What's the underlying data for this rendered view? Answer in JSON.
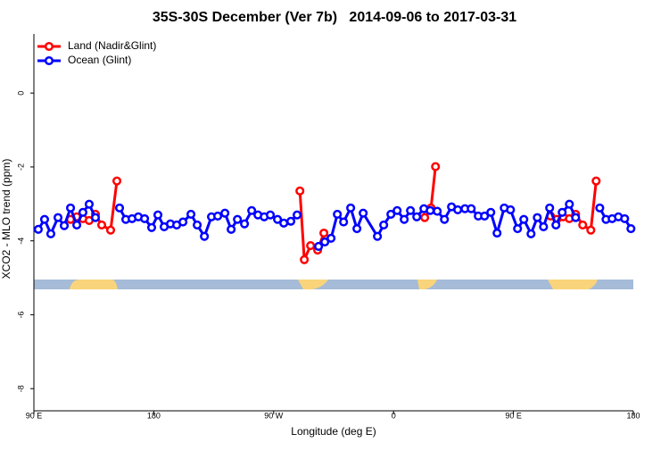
{
  "chart_data": {
    "type": "line",
    "title": "35S-30S December (Ver 7b)   2014-09-06 to 2017-03-31",
    "x_label": "Longitude (deg E)",
    "y_label": "XCO2 - MLO trend (ppm)",
    "xlim": [
      90,
      540
    ],
    "ylim": [
      -8.6,
      1.6
    ],
    "xticks": [
      {
        "value": 90,
        "label": "90 E"
      },
      180,
      {
        "value": 270,
        "label": "90 W"
      },
      {
        "value": 360,
        "label": "0"
      },
      {
        "value": 450,
        "label": "90 E"
      },
      {
        "value": 540,
        "label": "180"
      }
    ],
    "yticks": [
      0,
      -2,
      -4,
      -6,
      -8
    ],
    "legend": "top-left",
    "series": [
      {
        "name": "Land (Nadir&Glint)",
        "color": "#ff0000",
        "x": [
          117.5,
          122.2,
          126.8,
          131.5,
          136.2,
          140.9,
          147.6,
          152.3,
          null,
          289.7,
          293.0,
          297.7,
          303.0,
          307.7,
          null,
          383.4,
          388.1,
          391.5,
          null,
          477.9,
          482.6,
          487.3,
          492.0,
          496.7,
          502.0,
          508.1,
          512.1
        ],
        "values": [
          -3.42,
          -3.35,
          -3.4,
          -3.45,
          -3.28,
          -3.57,
          -3.71,
          -2.38,
          null,
          -2.65,
          -4.51,
          -4.13,
          -4.25,
          -3.79,
          null,
          -3.37,
          -3.11,
          -1.99,
          null,
          -3.33,
          -3.42,
          -3.35,
          -3.4,
          -3.28,
          -3.57,
          -3.71,
          -2.38
        ]
      },
      {
        "name": "Ocean (Glint)",
        "color": "#0000ff",
        "x": [
          93.3,
          98.0,
          102.7,
          108.1,
          112.8,
          117.5,
          122.2,
          126.8,
          131.5,
          136.2,
          null,
          154.3,
          159.0,
          163.7,
          168.4,
          173.1,
          178.4,
          183.1,
          187.8,
          192.5,
          197.2,
          201.9,
          207.9,
          212.6,
          218.0,
          223.3,
          228.0,
          233.4,
          238.1,
          242.8,
          248.1,
          253.5,
          258.2,
          262.9,
          267.5,
          272.9,
          277.6,
          282.9,
          287.6,
          null,
          303.7,
          308.4,
          313.1,
          317.8,
          322.5,
          327.8,
          332.5,
          337.2,
          347.9,
          352.6,
          358.0,
          362.7,
          368.0,
          372.7,
          377.4,
          382.8,
          387.5,
          392.8,
          398.2,
          403.5,
          408.2,
          413.6,
          418.3,
          423.6,
          428.3,
          433.0,
          437.7,
          443.1,
          447.8,
          453.1,
          457.8,
          463.2,
          467.9,
          472.6,
          477.2,
          481.9,
          486.6,
          492.0,
          496.7,
          null,
          514.8,
          519.5,
          524.1,
          528.8,
          533.5,
          538.2
        ],
        "values": [
          -3.69,
          -3.42,
          -3.81,
          -3.37,
          -3.59,
          -3.11,
          -3.57,
          -3.23,
          -3.01,
          -3.37,
          null,
          -3.11,
          -3.42,
          -3.4,
          -3.35,
          -3.4,
          -3.64,
          -3.3,
          -3.62,
          -3.54,
          -3.57,
          -3.49,
          -3.28,
          -3.57,
          -3.88,
          -3.35,
          -3.33,
          -3.25,
          -3.69,
          -3.42,
          -3.54,
          -3.18,
          -3.3,
          -3.35,
          -3.3,
          -3.42,
          -3.52,
          -3.47,
          -3.3,
          null,
          -4.15,
          -4.03,
          -3.93,
          -3.28,
          -3.49,
          -3.11,
          -3.67,
          -3.25,
          -3.88,
          -3.57,
          -3.28,
          -3.18,
          -3.42,
          -3.18,
          -3.35,
          -3.13,
          -3.18,
          -3.2,
          -3.42,
          -3.08,
          -3.16,
          -3.13,
          -3.13,
          -3.33,
          -3.33,
          -3.23,
          -3.79,
          -3.11,
          -3.16,
          -3.67,
          -3.42,
          -3.81,
          -3.37,
          -3.62,
          -3.11,
          -3.57,
          -3.23,
          -3.01,
          -3.37,
          null,
          -3.11,
          -3.42,
          -3.4,
          -3.35,
          -3.4,
          -3.67
        ]
      }
    ]
  }
}
